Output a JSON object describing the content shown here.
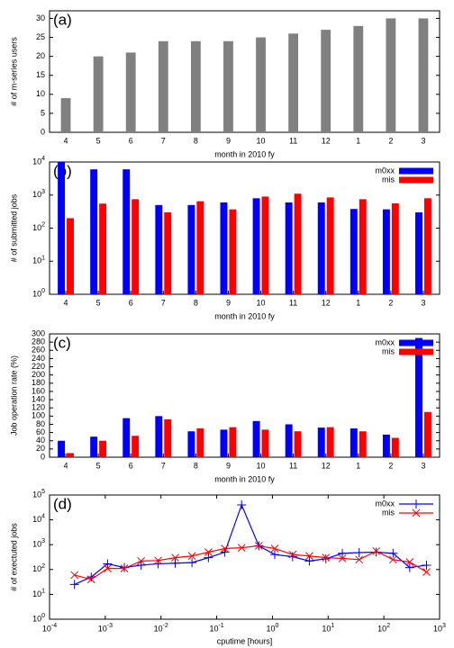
{
  "chart_data": [
    {
      "type": "bar",
      "annotation": "(a)",
      "xlabel": "month in 2010 fy",
      "ylabel": "# of m-series users",
      "categories": [
        "4",
        "5",
        "6",
        "7",
        "8",
        "9",
        "10",
        "11",
        "12",
        "1",
        "2",
        "3"
      ],
      "values": [
        9,
        20,
        21,
        24,
        24,
        24,
        25,
        26,
        27,
        28,
        30,
        30
      ],
      "color": "#808080",
      "ylim": [
        0,
        32
      ],
      "yticks": [
        0,
        5,
        10,
        15,
        20,
        25,
        30
      ]
    },
    {
      "type": "bar",
      "annotation": "(b)",
      "xlabel": "month in 2010 fy",
      "ylabel": "# of submitted jobs",
      "ylog": true,
      "legend": "upper right",
      "categories": [
        "4",
        "5",
        "6",
        "7",
        "8",
        "9",
        "10",
        "11",
        "12",
        "1",
        "2",
        "3"
      ],
      "series": [
        {
          "name": "m0xx",
          "color": "#0000ff",
          "values": [
            10000,
            6000,
            6000,
            500,
            500,
            600,
            800,
            600,
            600,
            380,
            370,
            300
          ]
        },
        {
          "name": "mis",
          "color": "#ff0000",
          "values": [
            200,
            550,
            750,
            300,
            650,
            370,
            900,
            1100,
            850,
            750,
            560,
            800
          ]
        }
      ],
      "ylim": [
        1,
        10000
      ],
      "yticks": [
        {
          "value": 1,
          "label": "10^0"
        },
        {
          "value": 10,
          "label": "10^1"
        },
        {
          "value": 100,
          "label": "10^2"
        },
        {
          "value": 1000,
          "label": "10^3"
        },
        {
          "value": 10000,
          "label": "10^4"
        }
      ]
    },
    {
      "type": "bar",
      "annotation": "(c)",
      "xlabel": "month in 2010 fy",
      "ylabel": "Job operation rate (%)",
      "legend": "upper right",
      "categories": [
        "4",
        "5",
        "6",
        "7",
        "8",
        "9",
        "10",
        "11",
        "12",
        "1",
        "2",
        "3"
      ],
      "series": [
        {
          "name": "m0xx",
          "color": "#0000ff",
          "values": [
            40,
            50,
            95,
            100,
            63,
            67,
            88,
            80,
            72,
            70,
            55,
            290
          ]
        },
        {
          "name": "mis",
          "color": "#ff0000",
          "values": [
            10,
            40,
            52,
            92,
            70,
            73,
            67,
            63,
            73,
            63,
            47,
            110
          ]
        }
      ],
      "ylim": [
        0,
        300
      ],
      "yticks": [
        0,
        20,
        40,
        60,
        80,
        100,
        120,
        140,
        160,
        180,
        200,
        220,
        240,
        260,
        280,
        300
      ]
    },
    {
      "type": "line",
      "annotation": "(d)",
      "xlabel": "cputime [hours]",
      "ylabel": "# of exectuted jobs",
      "xlog": true,
      "ylog": true,
      "legend": "upper right",
      "x": [
        0.00028,
        0.00056,
        0.0011,
        0.0022,
        0.0044,
        0.0089,
        0.018,
        0.036,
        0.071,
        0.14,
        0.28,
        0.57,
        1.1,
        2.3,
        4.6,
        9.1,
        18,
        36,
        73,
        146,
        291,
        583
      ],
      "series": [
        {
          "name": "m0xx",
          "color": "#0000ff",
          "marker": "+",
          "values": [
            25,
            50,
            170,
            120,
            150,
            170,
            180,
            190,
            300,
            500,
            40000,
            900,
            400,
            330,
            220,
            270,
            450,
            480,
            500,
            450,
            120,
            150
          ]
        },
        {
          "name": "mis",
          "color": "#ff0000",
          "marker": "x",
          "values": [
            60,
            40,
            110,
            110,
            220,
            230,
            300,
            350,
            500,
            700,
            750,
            900,
            700,
            400,
            350,
            300,
            280,
            250,
            550,
            250,
            200,
            80
          ]
        }
      ],
      "xlim": [
        0.0001,
        1000
      ],
      "xticks": [
        {
          "value": 0.0001,
          "label": "10^-4"
        },
        {
          "value": 0.001,
          "label": "10^-3"
        },
        {
          "value": 0.01,
          "label": "10^-2"
        },
        {
          "value": 0.1,
          "label": "10^-1"
        },
        {
          "value": 1,
          "label": "10^0"
        },
        {
          "value": 10,
          "label": "10^1"
        },
        {
          "value": 100,
          "label": "10^2"
        },
        {
          "value": 1000,
          "label": "10^3"
        }
      ],
      "ylim": [
        1,
        100000
      ],
      "yticks": [
        {
          "value": 1,
          "label": "10^0"
        },
        {
          "value": 10,
          "label": "10^1"
        },
        {
          "value": 100,
          "label": "10^2"
        },
        {
          "value": 1000,
          "label": "10^3"
        },
        {
          "value": 10000,
          "label": "10^4"
        },
        {
          "value": 100000,
          "label": "10^5"
        }
      ]
    }
  ]
}
